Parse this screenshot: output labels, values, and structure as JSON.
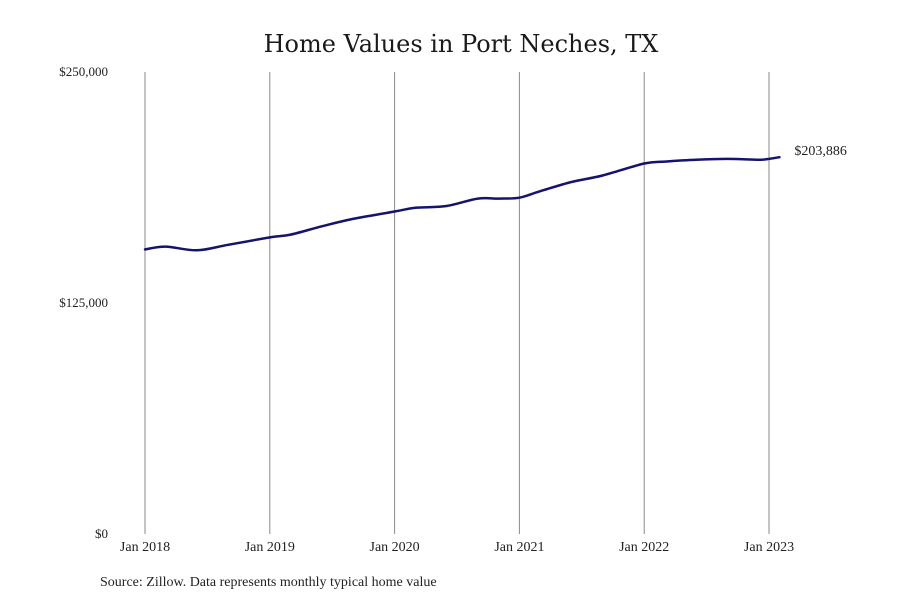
{
  "chart_data": {
    "type": "line",
    "title": "Home Values in Port Neches, TX",
    "xlabel": "",
    "ylabel": "",
    "ylim": [
      0,
      250000
    ],
    "yticks": [
      {
        "value": 0,
        "label": "$0"
      },
      {
        "value": 125000,
        "label": "$125,000"
      },
      {
        "value": 250000,
        "label": "$250,000"
      }
    ],
    "xlim": [
      "2018-01",
      "2023-03"
    ],
    "xticks": [
      {
        "value": "2018-01",
        "label": "Jan 2018"
      },
      {
        "value": "2019-01",
        "label": "Jan 2019"
      },
      {
        "value": "2020-01",
        "label": "Jan 2020"
      },
      {
        "value": "2021-01",
        "label": "Jan 2021"
      },
      {
        "value": "2022-01",
        "label": "Jan 2022"
      },
      {
        "value": "2023-01",
        "label": "Jan 2023"
      }
    ],
    "grid": "vertical",
    "legend": "none",
    "series": [
      {
        "color": "#14146e",
        "end_label": "$203,886",
        "points": [
          {
            "x": "2018-01",
            "y": 154000
          },
          {
            "x": "2018-03",
            "y": 155500
          },
          {
            "x": "2018-06",
            "y": 153500
          },
          {
            "x": "2018-09",
            "y": 156500
          },
          {
            "x": "2019-01",
            "y": 160500
          },
          {
            "x": "2019-03",
            "y": 162000
          },
          {
            "x": "2019-06",
            "y": 166500
          },
          {
            "x": "2019-09",
            "y": 170500
          },
          {
            "x": "2020-01",
            "y": 174500
          },
          {
            "x": "2020-03",
            "y": 176500
          },
          {
            "x": "2020-06",
            "y": 177500
          },
          {
            "x": "2020-09",
            "y": 181500
          },
          {
            "x": "2020-11",
            "y": 181500
          },
          {
            "x": "2021-01",
            "y": 182000
          },
          {
            "x": "2021-03",
            "y": 185500
          },
          {
            "x": "2021-06",
            "y": 190500
          },
          {
            "x": "2021-09",
            "y": 194000
          },
          {
            "x": "2022-01",
            "y": 200500
          },
          {
            "x": "2022-03",
            "y": 201500
          },
          {
            "x": "2022-06",
            "y": 202500
          },
          {
            "x": "2022-09",
            "y": 203000
          },
          {
            "x": "2022-12",
            "y": 202500
          },
          {
            "x": "2023-01",
            "y": 203000
          },
          {
            "x": "2023-02",
            "y": 203886
          }
        ]
      }
    ],
    "source_note": "Source: Zillow. Data represents monthly typical home value"
  }
}
